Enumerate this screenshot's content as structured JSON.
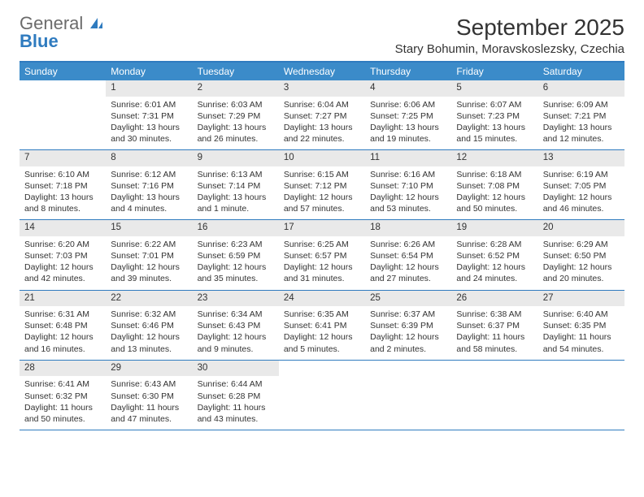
{
  "brand": {
    "part1": "General",
    "part2": "Blue"
  },
  "title": "September 2025",
  "location": "Stary Bohumin, Moravskoslezsky, Czechia",
  "colors": {
    "header_bar": "#3b8bc9",
    "rule": "#2f7bbf",
    "daynum_bg": "#e9e9e9",
    "text": "#333333",
    "bg": "#ffffff"
  },
  "dow": [
    "Sunday",
    "Monday",
    "Tuesday",
    "Wednesday",
    "Thursday",
    "Friday",
    "Saturday"
  ],
  "weeks": [
    [
      {
        "empty": true
      },
      {
        "num": "1",
        "sunrise": "Sunrise: 6:01 AM",
        "sunset": "Sunset: 7:31 PM",
        "day1": "Daylight: 13 hours",
        "day2": "and 30 minutes."
      },
      {
        "num": "2",
        "sunrise": "Sunrise: 6:03 AM",
        "sunset": "Sunset: 7:29 PM",
        "day1": "Daylight: 13 hours",
        "day2": "and 26 minutes."
      },
      {
        "num": "3",
        "sunrise": "Sunrise: 6:04 AM",
        "sunset": "Sunset: 7:27 PM",
        "day1": "Daylight: 13 hours",
        "day2": "and 22 minutes."
      },
      {
        "num": "4",
        "sunrise": "Sunrise: 6:06 AM",
        "sunset": "Sunset: 7:25 PM",
        "day1": "Daylight: 13 hours",
        "day2": "and 19 minutes."
      },
      {
        "num": "5",
        "sunrise": "Sunrise: 6:07 AM",
        "sunset": "Sunset: 7:23 PM",
        "day1": "Daylight: 13 hours",
        "day2": "and 15 minutes."
      },
      {
        "num": "6",
        "sunrise": "Sunrise: 6:09 AM",
        "sunset": "Sunset: 7:21 PM",
        "day1": "Daylight: 13 hours",
        "day2": "and 12 minutes."
      }
    ],
    [
      {
        "num": "7",
        "sunrise": "Sunrise: 6:10 AM",
        "sunset": "Sunset: 7:18 PM",
        "day1": "Daylight: 13 hours",
        "day2": "and 8 minutes."
      },
      {
        "num": "8",
        "sunrise": "Sunrise: 6:12 AM",
        "sunset": "Sunset: 7:16 PM",
        "day1": "Daylight: 13 hours",
        "day2": "and 4 minutes."
      },
      {
        "num": "9",
        "sunrise": "Sunrise: 6:13 AM",
        "sunset": "Sunset: 7:14 PM",
        "day1": "Daylight: 13 hours",
        "day2": "and 1 minute."
      },
      {
        "num": "10",
        "sunrise": "Sunrise: 6:15 AM",
        "sunset": "Sunset: 7:12 PM",
        "day1": "Daylight: 12 hours",
        "day2": "and 57 minutes."
      },
      {
        "num": "11",
        "sunrise": "Sunrise: 6:16 AM",
        "sunset": "Sunset: 7:10 PM",
        "day1": "Daylight: 12 hours",
        "day2": "and 53 minutes."
      },
      {
        "num": "12",
        "sunrise": "Sunrise: 6:18 AM",
        "sunset": "Sunset: 7:08 PM",
        "day1": "Daylight: 12 hours",
        "day2": "and 50 minutes."
      },
      {
        "num": "13",
        "sunrise": "Sunrise: 6:19 AM",
        "sunset": "Sunset: 7:05 PM",
        "day1": "Daylight: 12 hours",
        "day2": "and 46 minutes."
      }
    ],
    [
      {
        "num": "14",
        "sunrise": "Sunrise: 6:20 AM",
        "sunset": "Sunset: 7:03 PM",
        "day1": "Daylight: 12 hours",
        "day2": "and 42 minutes."
      },
      {
        "num": "15",
        "sunrise": "Sunrise: 6:22 AM",
        "sunset": "Sunset: 7:01 PM",
        "day1": "Daylight: 12 hours",
        "day2": "and 39 minutes."
      },
      {
        "num": "16",
        "sunrise": "Sunrise: 6:23 AM",
        "sunset": "Sunset: 6:59 PM",
        "day1": "Daylight: 12 hours",
        "day2": "and 35 minutes."
      },
      {
        "num": "17",
        "sunrise": "Sunrise: 6:25 AM",
        "sunset": "Sunset: 6:57 PM",
        "day1": "Daylight: 12 hours",
        "day2": "and 31 minutes."
      },
      {
        "num": "18",
        "sunrise": "Sunrise: 6:26 AM",
        "sunset": "Sunset: 6:54 PM",
        "day1": "Daylight: 12 hours",
        "day2": "and 27 minutes."
      },
      {
        "num": "19",
        "sunrise": "Sunrise: 6:28 AM",
        "sunset": "Sunset: 6:52 PM",
        "day1": "Daylight: 12 hours",
        "day2": "and 24 minutes."
      },
      {
        "num": "20",
        "sunrise": "Sunrise: 6:29 AM",
        "sunset": "Sunset: 6:50 PM",
        "day1": "Daylight: 12 hours",
        "day2": "and 20 minutes."
      }
    ],
    [
      {
        "num": "21",
        "sunrise": "Sunrise: 6:31 AM",
        "sunset": "Sunset: 6:48 PM",
        "day1": "Daylight: 12 hours",
        "day2": "and 16 minutes."
      },
      {
        "num": "22",
        "sunrise": "Sunrise: 6:32 AM",
        "sunset": "Sunset: 6:46 PM",
        "day1": "Daylight: 12 hours",
        "day2": "and 13 minutes."
      },
      {
        "num": "23",
        "sunrise": "Sunrise: 6:34 AM",
        "sunset": "Sunset: 6:43 PM",
        "day1": "Daylight: 12 hours",
        "day2": "and 9 minutes."
      },
      {
        "num": "24",
        "sunrise": "Sunrise: 6:35 AM",
        "sunset": "Sunset: 6:41 PM",
        "day1": "Daylight: 12 hours",
        "day2": "and 5 minutes."
      },
      {
        "num": "25",
        "sunrise": "Sunrise: 6:37 AM",
        "sunset": "Sunset: 6:39 PM",
        "day1": "Daylight: 12 hours",
        "day2": "and 2 minutes."
      },
      {
        "num": "26",
        "sunrise": "Sunrise: 6:38 AM",
        "sunset": "Sunset: 6:37 PM",
        "day1": "Daylight: 11 hours",
        "day2": "and 58 minutes."
      },
      {
        "num": "27",
        "sunrise": "Sunrise: 6:40 AM",
        "sunset": "Sunset: 6:35 PM",
        "day1": "Daylight: 11 hours",
        "day2": "and 54 minutes."
      }
    ],
    [
      {
        "num": "28",
        "sunrise": "Sunrise: 6:41 AM",
        "sunset": "Sunset: 6:32 PM",
        "day1": "Daylight: 11 hours",
        "day2": "and 50 minutes."
      },
      {
        "num": "29",
        "sunrise": "Sunrise: 6:43 AM",
        "sunset": "Sunset: 6:30 PM",
        "day1": "Daylight: 11 hours",
        "day2": "and 47 minutes."
      },
      {
        "num": "30",
        "sunrise": "Sunrise: 6:44 AM",
        "sunset": "Sunset: 6:28 PM",
        "day1": "Daylight: 11 hours",
        "day2": "and 43 minutes."
      },
      {
        "empty": true
      },
      {
        "empty": true
      },
      {
        "empty": true
      },
      {
        "empty": true
      }
    ]
  ]
}
